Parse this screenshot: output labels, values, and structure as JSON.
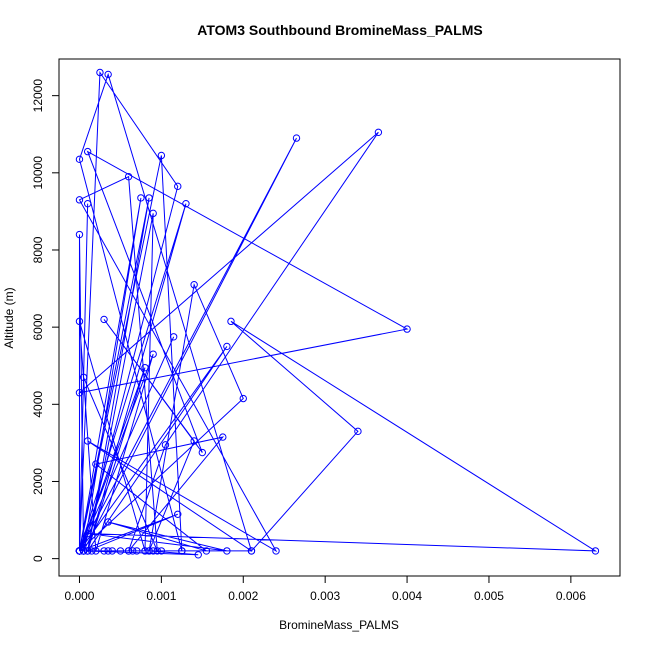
{
  "chart_data": {
    "type": "line",
    "title": "ATOM3 Southbound BromineMass_PALMS",
    "xlabel": "BromineMass_PALMS",
    "ylabel": "Altitude (m)",
    "xlim": [
      -0.00025,
      0.0066
    ],
    "ylim": [
      -450,
      12950
    ],
    "xticks": [
      0.0,
      0.001,
      0.002,
      0.003,
      0.004,
      0.005,
      0.006
    ],
    "xtick_labels": [
      "0.000",
      "0.001",
      "0.002",
      "0.003",
      "0.004",
      "0.005",
      "0.006"
    ],
    "yticks": [
      0,
      2000,
      4000,
      6000,
      8000,
      10000,
      12000
    ],
    "ytick_labels": [
      "0",
      "2000",
      "4000",
      "6000",
      "8000",
      "10000",
      "12000"
    ],
    "grid": false,
    "color": "#0000FF",
    "series": [
      {
        "x": [
          0.0,
          0.00025,
          0.0012,
          5e-05,
          0.0,
          0.0,
          0.001,
          0.00125,
          0.0,
          0.00035,
          0.0021,
          0.0001,
          0.0024,
          0.0,
          0.0006,
          0.00095,
          5e-05,
          0.0001,
          0.0,
          0.00265,
          5e-05,
          0.00075,
          0.0,
          0.00085,
          0.0001,
          0.0018,
          0.0,
          0.0013,
          0.0001,
          0.0009,
          0.0008,
          0.0,
          0.0002,
          0.0009,
          0.0,
          0.00115,
          0.0,
          0.0008,
          0.0001,
          0.0012,
          0.0,
          0.002,
          0.0014,
          0.00085,
          0.0014,
          0.0003,
          0.0015,
          0.0001,
          0.004,
          0.0,
          0.00365,
          0.00105,
          0.0006,
          0.00175,
          0.0002,
          0.00155,
          0.00035,
          0.0018,
          0.0001,
          0.0063,
          0.00185,
          0.0034,
          0.0021,
          0.0008,
          0.0,
          0.0005,
          5e-05,
          0.00035,
          5e-05,
          0.00015,
          0.0003,
          0.0,
          0.001,
          0.0,
          0.0001,
          0.0,
          0.00065,
          0.0,
          0.0004,
          0.0,
          0.0006,
          5e-05,
          0.00125,
          0.0,
          5e-05,
          0.00145,
          0.00085,
          0.0009,
          0.0,
          0.0,
          0.0,
          0.0007
        ],
        "y": [
          200,
          12600,
          9650,
          200,
          8400,
          200,
          10450,
          200,
          10350,
          12550,
          200,
          3050,
          200,
          9300,
          9900,
          200,
          4700,
          9200,
          200,
          10900,
          200,
          9350,
          200,
          9350,
          200,
          5500,
          200,
          9200,
          200,
          8950,
          200,
          6150,
          200,
          5300,
          200,
          5750,
          200,
          4950,
          200,
          1150,
          200,
          4150,
          7100,
          200,
          3050,
          6200,
          2750,
          10550,
          5950,
          4300,
          11050,
          2950,
          200,
          3150,
          2450,
          200,
          950,
          200,
          650,
          200,
          6150,
          3300,
          200,
          200,
          200,
          200,
          200,
          200,
          200,
          200,
          200,
          200,
          200,
          200,
          200,
          200,
          200,
          200,
          200,
          200,
          200,
          200,
          200,
          200,
          200,
          100,
          200,
          200,
          200,
          200,
          200,
          200
        ]
      }
    ]
  }
}
